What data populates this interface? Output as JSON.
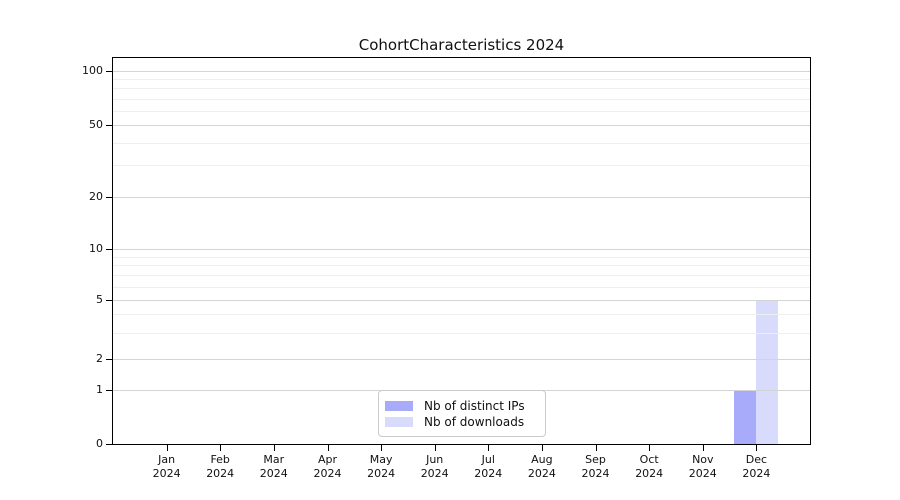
{
  "chart_data": {
    "type": "bar",
    "title": "CohortCharacteristics 2024",
    "xlabel": "",
    "ylabel": "",
    "categories": [
      "Jan\n2024",
      "Feb\n2024",
      "Mar\n2024",
      "Apr\n2024",
      "May\n2024",
      "Jun\n2024",
      "Jul\n2024",
      "Aug\n2024",
      "Sep\n2024",
      "Oct\n2024",
      "Nov\n2024",
      "Dec\n2024"
    ],
    "series": [
      {
        "name": "Nb of distinct IPs",
        "color": "#a8aafa",
        "values": [
          0,
          0,
          0,
          0,
          0,
          0,
          0,
          0,
          0,
          0,
          0,
          1
        ]
      },
      {
        "name": "Nb of downloads",
        "color": "#d9dbfc",
        "values": [
          0,
          0,
          0,
          0,
          0,
          0,
          0,
          0,
          0,
          0,
          0,
          5
        ]
      }
    ],
    "yticks": [
      0,
      1,
      2,
      5,
      10,
      20,
      50,
      100
    ],
    "minor_yticks": [
      3,
      4,
      6,
      7,
      8,
      9,
      30,
      40,
      60,
      70,
      80,
      90
    ],
    "yscale": "symlog",
    "ylim": [
      0,
      120
    ],
    "grid": "horizontal",
    "legend_position": "lower center",
    "colors": {
      "major_grid": "#d4d4d4",
      "minor_grid": "#efefef",
      "spine": "#000000",
      "legend_border": "#cbcbcb"
    }
  }
}
